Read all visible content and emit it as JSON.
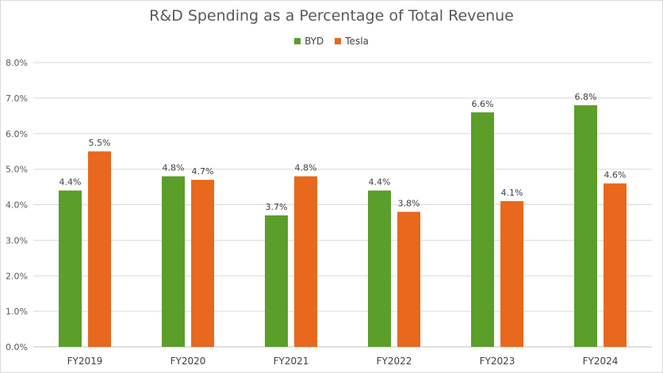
{
  "chart_data": {
    "type": "bar",
    "title": "R&D Spending as a Percentage of Total Revenue",
    "categories": [
      "FY2019",
      "FY2020",
      "FY2021",
      "FY2022",
      "FY2023",
      "FY2024"
    ],
    "series": [
      {
        "name": "BYD",
        "color": "#5b9e2a",
        "values": [
          4.4,
          4.8,
          3.7,
          4.4,
          6.6,
          6.8
        ],
        "labels": [
          "4.4%",
          "4.8%",
          "3.7%",
          "4.4%",
          "6.6%",
          "6.8%"
        ]
      },
      {
        "name": "Tesla",
        "color": "#e8681d",
        "values": [
          5.5,
          4.7,
          4.8,
          3.8,
          4.1,
          4.6
        ],
        "labels": [
          "5.5%",
          "4.7%",
          "4.8%",
          "3.8%",
          "4.1%",
          "4.6%"
        ]
      }
    ],
    "ylim": [
      0,
      8
    ],
    "yticks": [
      "0.0%",
      "1.0%",
      "2.0%",
      "3.0%",
      "4.0%",
      "5.0%",
      "6.0%",
      "7.0%",
      "8.0%"
    ],
    "xlabel": "",
    "ylabel": "",
    "grid": true,
    "legend_position": "top"
  }
}
